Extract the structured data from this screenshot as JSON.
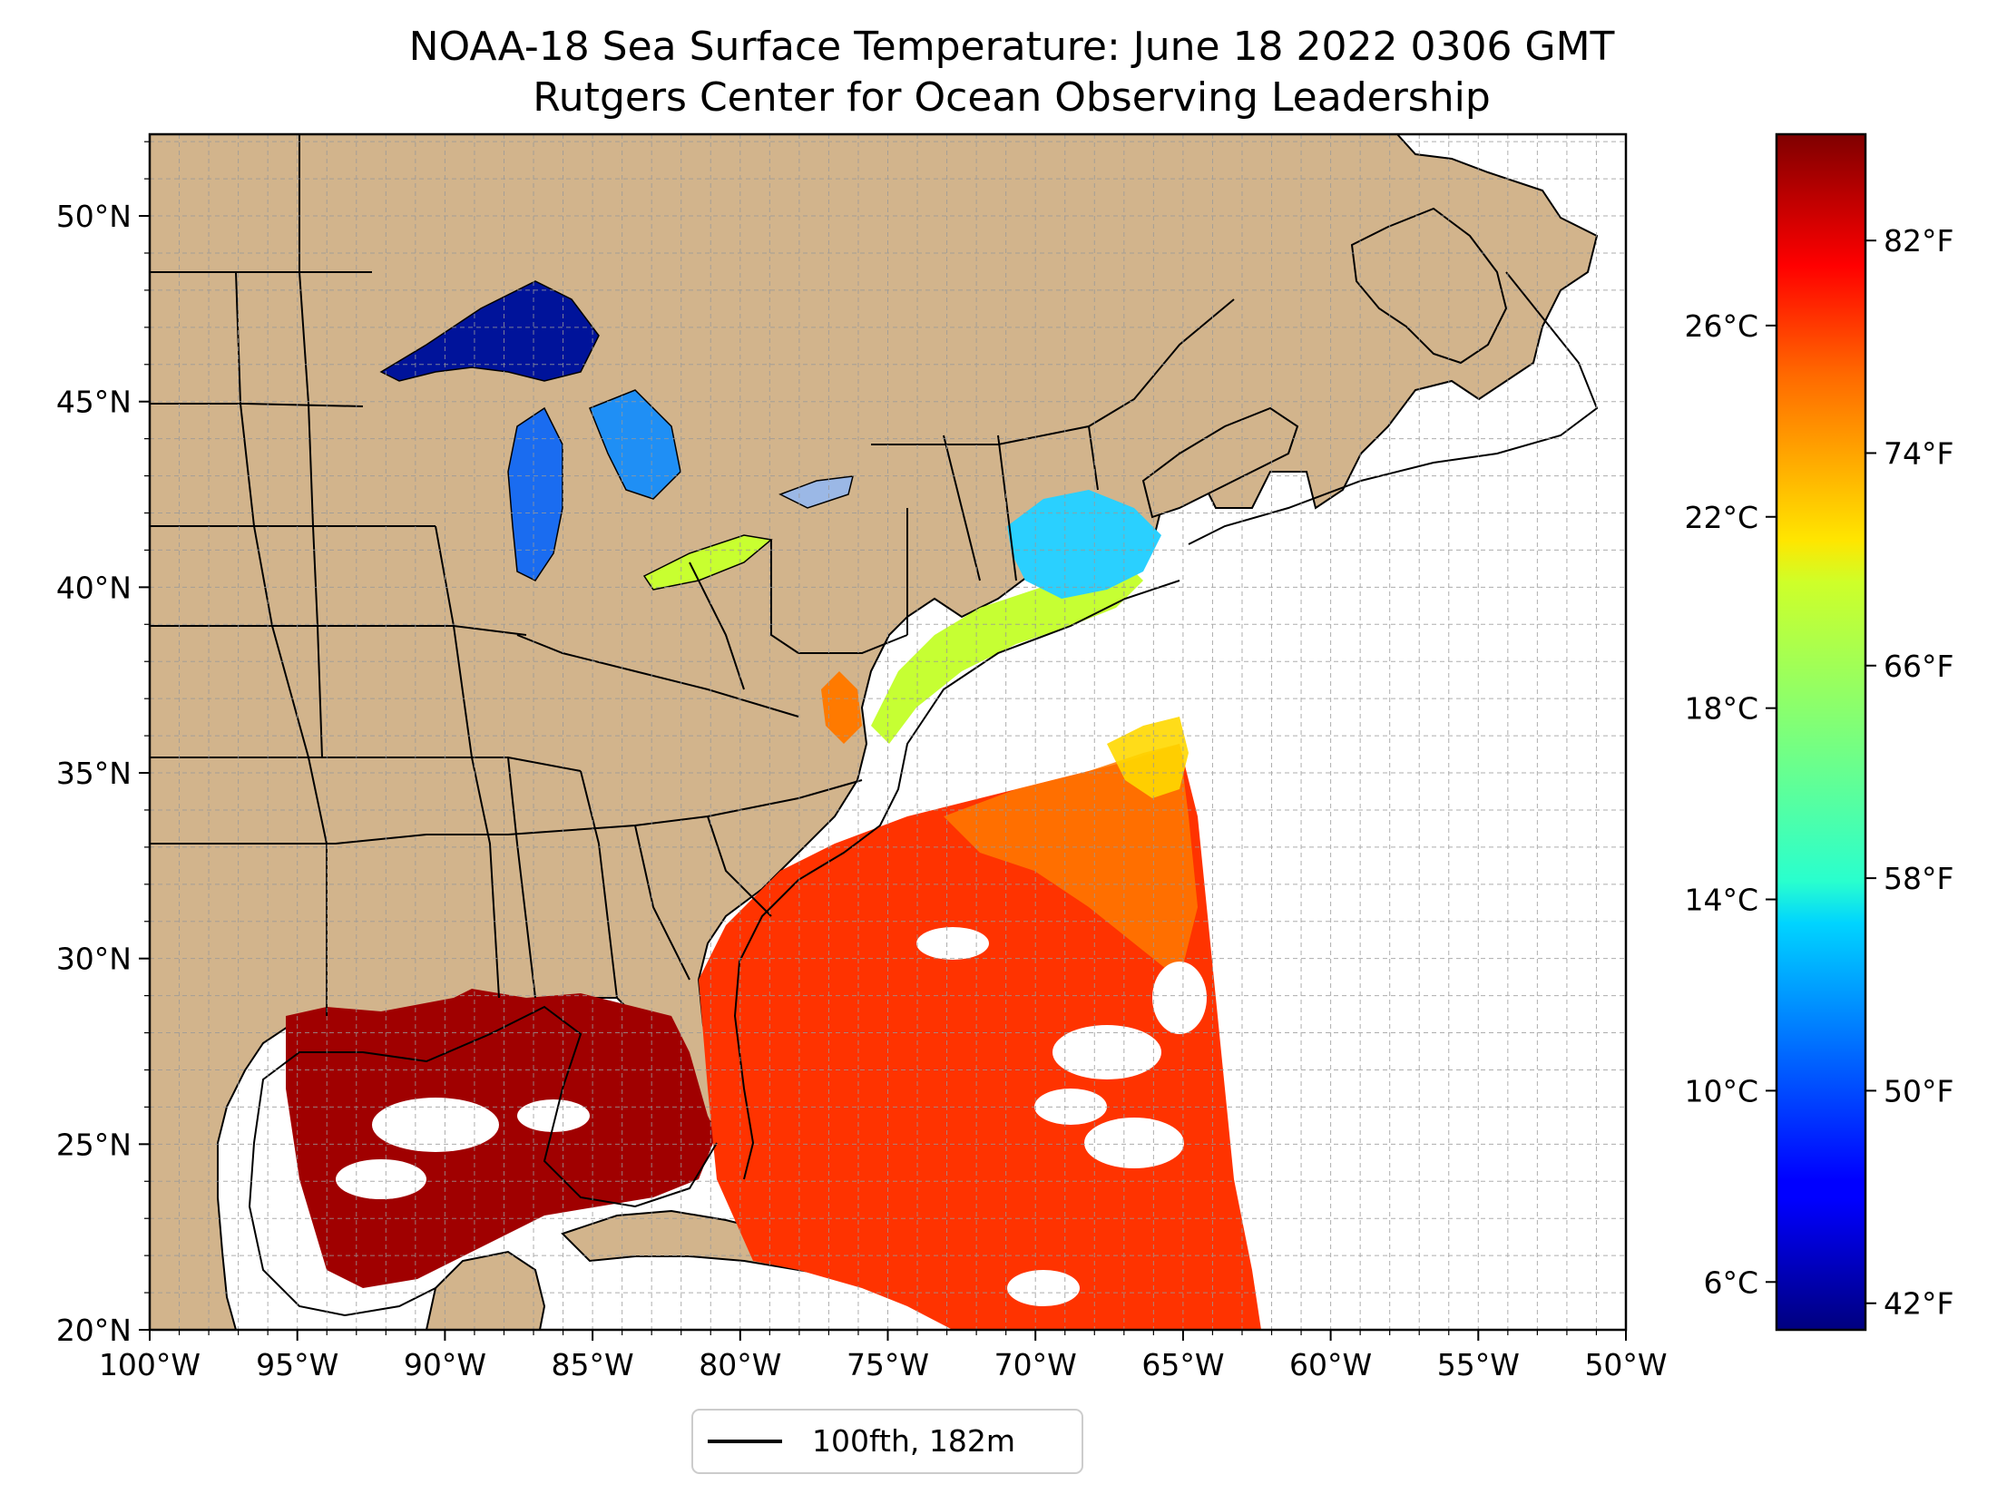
{
  "title": {
    "line1": "NOAA-18 Sea Surface Temperature: June 18 2022 0306 GMT",
    "line2": "Rutgers Center for Ocean Observing Leadership"
  },
  "map": {
    "lon_range": [
      -100,
      -50
    ],
    "lat_range": [
      20,
      52.2
    ],
    "grid": true,
    "land_color": "#d2b48c",
    "lake_color": "#9bb8e6",
    "ocean_color": "#ffffff",
    "lat_ticks": [
      {
        "value": 20,
        "label": "20°N"
      },
      {
        "value": 25,
        "label": "25°N"
      },
      {
        "value": 30,
        "label": "30°N"
      },
      {
        "value": 35,
        "label": "35°N"
      },
      {
        "value": 40,
        "label": "40°N"
      },
      {
        "value": 45,
        "label": "45°N"
      },
      {
        "value": 50,
        "label": "50°N"
      }
    ],
    "lon_ticks": [
      {
        "value": -100,
        "label": "100°W"
      },
      {
        "value": -95,
        "label": "95°W"
      },
      {
        "value": -90,
        "label": "90°W"
      },
      {
        "value": -85,
        "label": "85°W"
      },
      {
        "value": -80,
        "label": "80°W"
      },
      {
        "value": -75,
        "label": "75°W"
      },
      {
        "value": -70,
        "label": "70°W"
      },
      {
        "value": -65,
        "label": "65°W"
      },
      {
        "value": -60,
        "label": "60°W"
      },
      {
        "value": -55,
        "label": "55°W"
      },
      {
        "value": -50,
        "label": "50°W"
      }
    ]
  },
  "colorbar": {
    "colormap": "jet",
    "range_c": [
      5,
      30
    ],
    "celsius_ticks": [
      {
        "value": 6,
        "label": "6°C"
      },
      {
        "value": 10,
        "label": "10°C"
      },
      {
        "value": 14,
        "label": "14°C"
      },
      {
        "value": 18,
        "label": "18°C"
      },
      {
        "value": 22,
        "label": "22°C"
      },
      {
        "value": 26,
        "label": "26°C"
      }
    ],
    "fahrenheit_ticks": [
      {
        "value": 42,
        "label": "42°F"
      },
      {
        "value": 50,
        "label": "50°F"
      },
      {
        "value": 58,
        "label": "58°F"
      },
      {
        "value": 66,
        "label": "66°F"
      },
      {
        "value": 74,
        "label": "74°F"
      },
      {
        "value": 82,
        "label": "82°F"
      }
    ]
  },
  "legend": {
    "label": "100fth, 182m",
    "line_color": "#000000"
  }
}
